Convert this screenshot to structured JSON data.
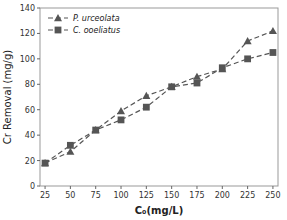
{
  "chart_data": {
    "type": "line",
    "x": [
      25,
      50,
      75,
      100,
      125,
      150,
      175,
      200,
      225,
      250
    ],
    "series": [
      {
        "name": "P. urceolata",
        "color": "#555555",
        "marker": "triangle",
        "line_style": "dashed",
        "values": [
          18,
          27,
          44,
          59,
          71,
          78,
          86,
          92,
          114,
          122
        ]
      },
      {
        "name": "C. ooeliatus",
        "color": "#555555",
        "marker": "square",
        "line_style": "dashed",
        "values": [
          18,
          32,
          44,
          52,
          62,
          78,
          81,
          93,
          100,
          105
        ]
      }
    ],
    "xlabel": "C₀(mg/L)",
    "ylabel": "Cr Removal (mg/g)",
    "xlim": [
      20,
      255
    ],
    "ylim": [
      0,
      140
    ],
    "xticks": [
      25,
      50,
      75,
      100,
      125,
      150,
      175,
      200,
      225,
      250
    ],
    "yticks": [
      0,
      20,
      40,
      60,
      80,
      100,
      120,
      140
    ],
    "grid": false,
    "legend": "upper left"
  }
}
